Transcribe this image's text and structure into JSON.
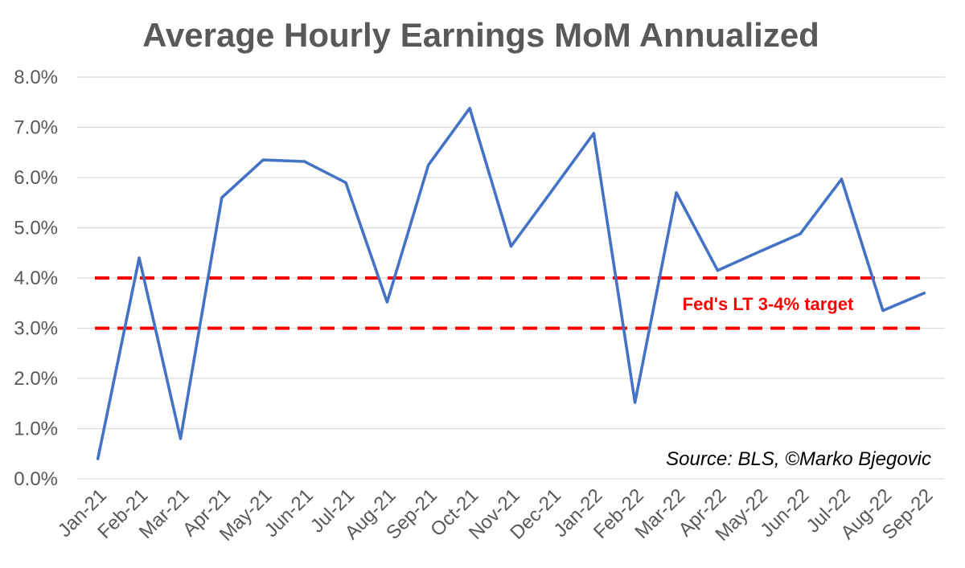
{
  "chart_data": {
    "type": "line",
    "title": "Average Hourly Earnings MoM Annualized",
    "xlabel": "",
    "ylabel": "",
    "ylim": [
      0,
      8
    ],
    "yticks": [
      0,
      1,
      2,
      3,
      4,
      5,
      6,
      7,
      8
    ],
    "ytick_labels": [
      "0.0%",
      "1.0%",
      "2.0%",
      "3.0%",
      "4.0%",
      "5.0%",
      "6.0%",
      "7.0%",
      "8.0%"
    ],
    "grid": true,
    "categories": [
      "Jan-21",
      "Feb-21",
      "Mar-21",
      "Apr-21",
      "May-21",
      "Jun-21",
      "Jul-21",
      "Aug-21",
      "Sep-21",
      "Oct-21",
      "Nov-21",
      "Dec-21",
      "Jan-22",
      "Feb-22",
      "Mar-22",
      "Apr-22",
      "May-22",
      "Jun-22",
      "Jul-22",
      "Aug-22",
      "Sep-22"
    ],
    "series": [
      {
        "name": "Average Hourly Earnings MoM Annualized",
        "color": "#4472C4",
        "values": [
          0.4,
          4.4,
          0.8,
          5.6,
          6.35,
          6.32,
          5.9,
          3.52,
          6.25,
          7.38,
          4.63,
          5.75,
          6.88,
          1.52,
          5.7,
          4.15,
          4.52,
          4.88,
          5.97,
          3.35,
          3.7
        ]
      }
    ],
    "reference_lines": [
      {
        "value": 4.0,
        "color": "#FF0000",
        "style": "dashed"
      },
      {
        "value": 3.0,
        "color": "#FF0000",
        "style": "dashed"
      }
    ],
    "annotations": {
      "target_label": "Fed's LT 3-4% target",
      "target_color": "#FF0000",
      "source": "Source: BLS, ©Marko Bjegovic"
    }
  }
}
